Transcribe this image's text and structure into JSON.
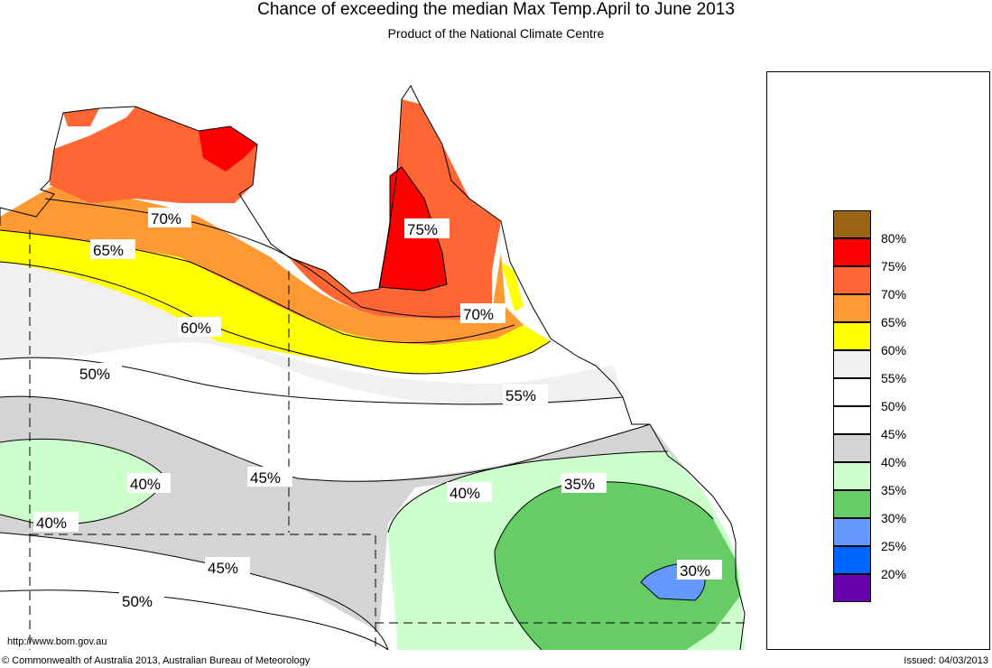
{
  "header": {
    "title": "Chance of exceeding the median Max Temp.April to June 2013",
    "subtitle": "Product of the National Climate Centre"
  },
  "legend": {
    "items": [
      {
        "label": "",
        "color": "#996515"
      },
      {
        "label": "80%",
        "color": "#ff0000"
      },
      {
        "label": "75%",
        "color": "#ff6633"
      },
      {
        "label": "70%",
        "color": "#ff9933"
      },
      {
        "label": "65%",
        "color": "#ffff00"
      },
      {
        "label": "60%",
        "color": "#f0f0f0"
      },
      {
        "label": "55%",
        "color": "#ffffff"
      },
      {
        "label": "50%",
        "color": "#ffffff"
      },
      {
        "label": "45%",
        "color": "#d4d4d4"
      },
      {
        "label": "40%",
        "color": "#ccffcc"
      },
      {
        "label": "35%",
        "color": "#66cc66"
      },
      {
        "label": "30%",
        "color": "#6699ff"
      },
      {
        "label": "25%",
        "color": "#0066ff"
      },
      {
        "label": "20%",
        "color": "#6600aa"
      }
    ]
  },
  "contour_labels": {
    "l70a": "70%",
    "l75": "75%",
    "l65": "65%",
    "l70b": "70%",
    "l60": "60%",
    "l50a": "50%",
    "l55": "55%",
    "l40a": "40%",
    "l45a": "45%",
    "l40b": "40%",
    "l35": "35%",
    "l40c": "40%",
    "l45b": "45%",
    "l30": "30%",
    "l50b": "50%"
  },
  "footer": {
    "url": "http://www.bom.gov.au",
    "copyright": "© Commonwealth of Australia 2013, Australian Bureau of Meteorology",
    "issued": "Issued: 04/03/2013"
  }
}
